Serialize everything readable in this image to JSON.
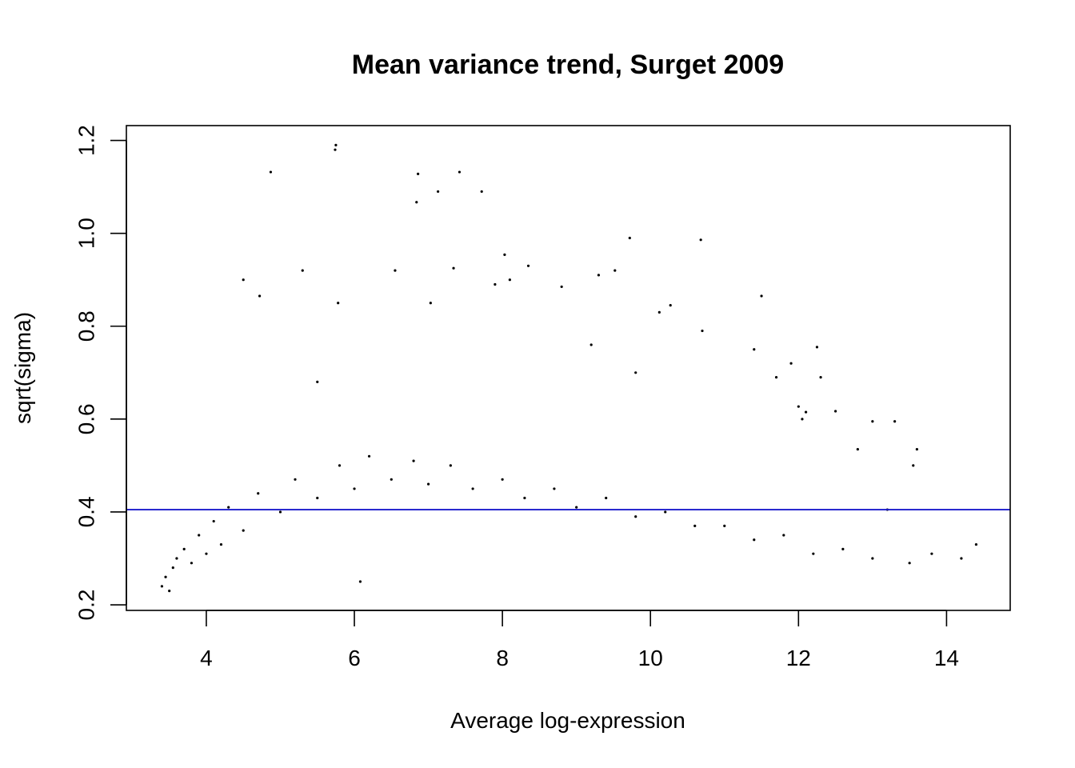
{
  "chart_data": {
    "type": "scatter",
    "title": "Mean variance trend, Surget 2009",
    "xlabel": "Average log-expression",
    "ylabel": "sqrt(sigma)",
    "xlim": [
      2.92,
      14.86
    ],
    "ylim": [
      0.188,
      1.232
    ],
    "xticks": [
      4,
      6,
      8,
      10,
      12,
      14
    ],
    "xtick_labels": [
      "4",
      "6",
      "8",
      "10",
      "12",
      "14"
    ],
    "yticks": [
      0.2,
      0.4,
      0.6,
      0.8,
      1.0,
      1.2
    ],
    "ytick_labels": [
      "0.2",
      "0.4",
      "0.6",
      "0.8",
      "1.0",
      "1.2"
    ],
    "grid": false,
    "series": [
      {
        "marker_color": "#000000",
        "points": [
          [
            3.4,
            0.24
          ],
          [
            3.45,
            0.26
          ],
          [
            3.5,
            0.23
          ],
          [
            3.55,
            0.28
          ],
          [
            3.6,
            0.3
          ],
          [
            3.7,
            0.32
          ],
          [
            3.8,
            0.29
          ],
          [
            3.9,
            0.35
          ],
          [
            4.0,
            0.31
          ],
          [
            4.1,
            0.38
          ],
          [
            4.2,
            0.33
          ],
          [
            4.3,
            0.41
          ],
          [
            4.5,
            0.36
          ],
          [
            4.7,
            0.44
          ],
          [
            5.0,
            0.4
          ],
          [
            5.2,
            0.47
          ],
          [
            5.5,
            0.43
          ],
          [
            5.8,
            0.5
          ],
          [
            6.0,
            0.45
          ],
          [
            6.2,
            0.52
          ],
          [
            6.5,
            0.47
          ],
          [
            6.8,
            0.51
          ],
          [
            7.0,
            0.46
          ],
          [
            7.3,
            0.5
          ],
          [
            7.6,
            0.45
          ],
          [
            8.0,
            0.47
          ],
          [
            8.3,
            0.43
          ],
          [
            8.7,
            0.45
          ],
          [
            9.0,
            0.41
          ],
          [
            9.4,
            0.43
          ],
          [
            9.8,
            0.39
          ],
          [
            10.2,
            0.4
          ],
          [
            10.6,
            0.37
          ],
          [
            11.0,
            0.37
          ],
          [
            11.4,
            0.34
          ],
          [
            11.8,
            0.35
          ],
          [
            12.2,
            0.31
          ],
          [
            12.6,
            0.32
          ],
          [
            13.0,
            0.3
          ],
          [
            13.5,
            0.29
          ],
          [
            13.8,
            0.31
          ],
          [
            14.4,
            0.33
          ],
          [
            14.2,
            0.3
          ],
          [
            13.6,
            0.535
          ],
          [
            13.55,
            0.5
          ],
          [
            5.75,
            1.19
          ],
          [
            5.74,
            1.18
          ],
          [
            4.87,
            1.132
          ],
          [
            6.86,
            1.128
          ],
          [
            7.42,
            1.132
          ],
          [
            6.84,
            1.067
          ],
          [
            7.13,
            1.09
          ],
          [
            7.72,
            1.09
          ],
          [
            9.72,
            0.99
          ],
          [
            10.68,
            0.986
          ],
          [
            8.03,
            0.954
          ],
          [
            7.34,
            0.925
          ],
          [
            5.3,
            0.92
          ],
          [
            4.5,
            0.9
          ],
          [
            8.35,
            0.93
          ],
          [
            9.52,
            0.92
          ],
          [
            9.3,
            0.91
          ],
          [
            6.55,
            0.92
          ],
          [
            4.72,
            0.865
          ],
          [
            5.78,
            0.85
          ],
          [
            7.03,
            0.85
          ],
          [
            8.8,
            0.885
          ],
          [
            10.12,
            0.83
          ],
          [
            10.27,
            0.845
          ],
          [
            11.5,
            0.865
          ],
          [
            8.1,
            0.9
          ],
          [
            7.9,
            0.89
          ],
          [
            12.25,
            0.755
          ],
          [
            11.4,
            0.75
          ],
          [
            12.5,
            0.617
          ],
          [
            12.0,
            0.627
          ],
          [
            12.05,
            0.6
          ],
          [
            12.1,
            0.615
          ],
          [
            13.0,
            0.595
          ],
          [
            13.3,
            0.595
          ],
          [
            12.8,
            0.535
          ],
          [
            13.2,
            0.405
          ],
          [
            6.08,
            0.25
          ],
          [
            5.5,
            0.68
          ],
          [
            9.8,
            0.7
          ],
          [
            10.7,
            0.79
          ],
          [
            11.7,
            0.69
          ],
          [
            11.9,
            0.72
          ],
          [
            12.3,
            0.69
          ],
          [
            9.2,
            0.76
          ]
        ]
      }
    ],
    "hline": {
      "y": 0.405,
      "color": "#1a1acc"
    }
  }
}
